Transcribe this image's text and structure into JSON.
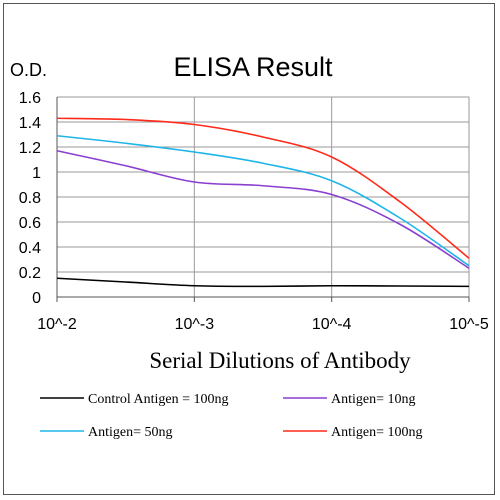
{
  "chart_data": {
    "type": "line",
    "title": "ELISA Result",
    "ylabel": "O.D.",
    "xlabel": "Serial Dilutions of Antibody",
    "ylim": [
      0,
      1.6
    ],
    "y_ticks": [
      "0",
      "0.2",
      "0.4",
      "0.6",
      "0.8",
      "1",
      "1.2",
      "1.4",
      "1.6"
    ],
    "x_ticks": [
      "10^-2",
      "10^-3",
      "10^-4",
      "10^-5"
    ],
    "grid": true,
    "legend_position": "bottom",
    "series": [
      {
        "name": "Control Antigen = 100ng",
        "color": "#000000",
        "points": [
          [
            0,
            0.15
          ],
          [
            0.5,
            0.12
          ],
          [
            1,
            0.09
          ],
          [
            1.5,
            0.085
          ],
          [
            2,
            0.09
          ],
          [
            2.5,
            0.088
          ],
          [
            3,
            0.085
          ]
        ]
      },
      {
        "name": "Antigen= 10ng",
        "color": "#8a3fd0",
        "points": [
          [
            0,
            1.17
          ],
          [
            0.5,
            1.05
          ],
          [
            1,
            0.92
          ],
          [
            1.5,
            0.89
          ],
          [
            2,
            0.82
          ],
          [
            2.5,
            0.58
          ],
          [
            3,
            0.23
          ]
        ]
      },
      {
        "name": "Antigen= 50ng",
        "color": "#1fb5e8",
        "points": [
          [
            0,
            1.29
          ],
          [
            0.5,
            1.23
          ],
          [
            1,
            1.16
          ],
          [
            1.5,
            1.07
          ],
          [
            2,
            0.93
          ],
          [
            2.5,
            0.63
          ],
          [
            3,
            0.25
          ]
        ]
      },
      {
        "name": "Antigen= 100ng",
        "color": "#ff2a1a",
        "points": [
          [
            0,
            1.43
          ],
          [
            0.5,
            1.42
          ],
          [
            1,
            1.38
          ],
          [
            1.5,
            1.28
          ],
          [
            2,
            1.12
          ],
          [
            2.5,
            0.76
          ],
          [
            3,
            0.31
          ]
        ]
      }
    ]
  }
}
